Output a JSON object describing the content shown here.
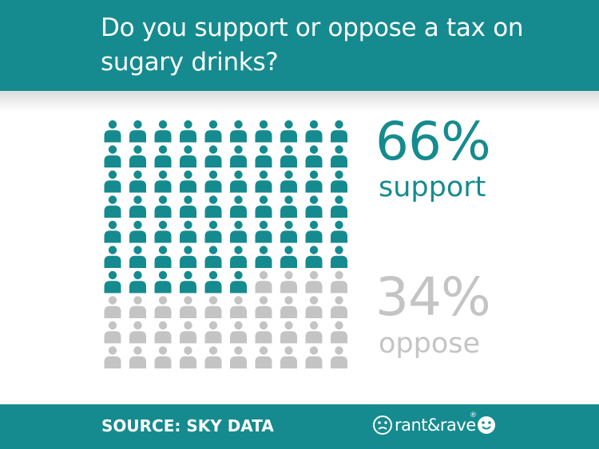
{
  "header": {
    "title": "Do you support or oppose a tax on sugary drinks?"
  },
  "chart_data": {
    "type": "waffle",
    "grid": {
      "columns": 10,
      "rows": 10
    },
    "icon": "person-icon",
    "series": [
      {
        "name": "support",
        "value": 66,
        "label": "66%",
        "color": "#158b8f"
      },
      {
        "name": "oppose",
        "value": 34,
        "label": "34%",
        "color": "#c4c4c4"
      }
    ],
    "fill_order": "row-major from top-left"
  },
  "footer": {
    "source": "SOURCE: SKY DATA",
    "logo_text": "rant&rave",
    "logo_mark": "®"
  },
  "colors": {
    "brand_teal": "#158b8f",
    "muted_grey": "#c4c4c4",
    "white": "#ffffff"
  }
}
